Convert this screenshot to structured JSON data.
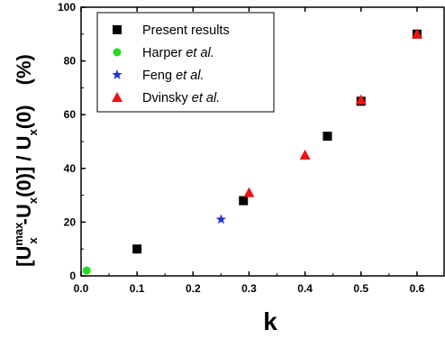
{
  "chart_data": {
    "type": "scatter",
    "title": "",
    "xlabel": "k",
    "ylabel": {
      "prefix": "[U",
      "sup1": "max",
      "sub1": "x",
      "mid": "-U",
      "sub2": "x",
      "tail1": "(0)] / U",
      "sub3": "x",
      "tail2": "(0)",
      "unit": "(%)"
    },
    "xlim": [
      0.0,
      0.65
    ],
    "ylim": [
      0,
      100
    ],
    "xticks": [
      "0.0",
      "0.1",
      "0.2",
      "0.3",
      "0.4",
      "0.5",
      "0.6"
    ],
    "yticks": [
      "0",
      "20",
      "40",
      "60",
      "80",
      "100"
    ],
    "legend_position": "top-left",
    "series": [
      {
        "name": "Present results",
        "name_plain": "Present results",
        "name_italic": "",
        "marker": "square",
        "color": "#000000",
        "x": [
          0.1,
          0.29,
          0.44,
          0.5,
          0.6
        ],
        "y": [
          10,
          28,
          52,
          65,
          90
        ]
      },
      {
        "name": "Harper et al.",
        "name_plain": "Harper ",
        "name_italic": "et al.",
        "marker": "circle",
        "color": "#22dd22",
        "x": [
          0.01
        ],
        "y": [
          2
        ]
      },
      {
        "name": "Feng et al.",
        "name_plain": "Feng ",
        "name_italic": "et al.",
        "marker": "star",
        "color": "#2233dd",
        "x": [
          0.25
        ],
        "y": [
          21
        ]
      },
      {
        "name": "Dvinsky et al.",
        "name_plain": "Dvinsky ",
        "name_italic": "et al.",
        "marker": "triangle",
        "color": "#ee1111",
        "x": [
          0.3,
          0.4,
          0.5,
          0.6
        ],
        "y": [
          31,
          45,
          65.5,
          90
        ]
      }
    ]
  }
}
